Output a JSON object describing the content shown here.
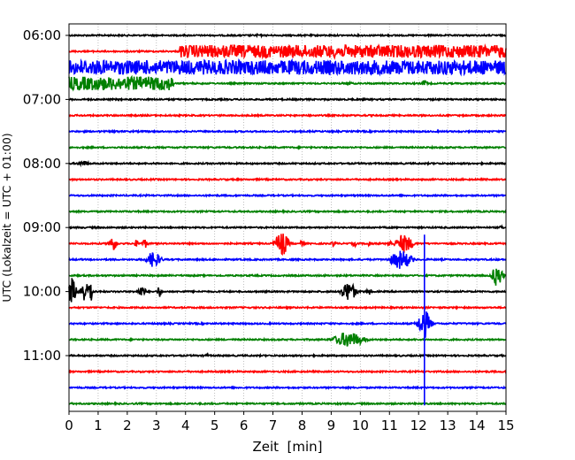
{
  "chart_data": {
    "type": "line",
    "title": "",
    "xlabel": "Zeit  [min]",
    "ylabel": "UTC (Lokalzeit = UTC + 01:00)",
    "xlim": [
      0,
      15
    ],
    "x_ticks": [
      "0",
      "1",
      "2",
      "3",
      "4",
      "5",
      "6",
      "7",
      "8",
      "9",
      "10",
      "11",
      "12",
      "13",
      "14",
      "15"
    ],
    "y_ticks": [
      "06:00",
      "07:00",
      "08:00",
      "09:00",
      "10:00",
      "11:00"
    ],
    "grid": "vertical dotted",
    "row_minutes": 15,
    "rows": [
      {
        "start": "06:00",
        "color": "#000000",
        "events": [
          {
            "t": 6.5,
            "amp": 0.15,
            "dur": 0.6
          }
        ]
      },
      {
        "start": "06:15",
        "color": "#ff0000",
        "events": [],
        "band": {
          "from": 3.8,
          "amp": 0.8
        }
      },
      {
        "start": "06:30",
        "color": "#0000ff",
        "events": [],
        "band": {
          "from": 0,
          "amp": 0.9
        }
      },
      {
        "start": "06:45",
        "color": "#008000",
        "events": [
          {
            "t": 9.6,
            "amp": 0.3,
            "dur": 0.3
          },
          {
            "t": 12.2,
            "amp": 0.4,
            "dur": 0.3
          }
        ],
        "band": {
          "from": 0,
          "to": 3.6,
          "amp": 0.85
        }
      },
      {
        "start": "07:00",
        "color": "#000000",
        "events": []
      },
      {
        "start": "07:15",
        "color": "#ff0000",
        "events": []
      },
      {
        "start": "07:30",
        "color": "#0000ff",
        "events": [
          {
            "t": 1.6,
            "amp": 0.15,
            "dur": 0.5
          }
        ]
      },
      {
        "start": "07:45",
        "color": "#008000",
        "events": []
      },
      {
        "start": "08:00",
        "color": "#000000",
        "events": [
          {
            "t": 0.5,
            "amp": 0.35,
            "dur": 0.6
          },
          {
            "t": 3.0,
            "amp": 0.15,
            "dur": 0.3
          }
        ]
      },
      {
        "start": "08:15",
        "color": "#ff0000",
        "events": []
      },
      {
        "start": "08:30",
        "color": "#0000ff",
        "events": []
      },
      {
        "start": "08:45",
        "color": "#008000",
        "events": []
      },
      {
        "start": "09:00",
        "color": "#000000",
        "events": [
          {
            "t": 14.85,
            "amp": 0.3,
            "dur": 0.2
          }
        ]
      },
      {
        "start": "09:15",
        "color": "#ff0000",
        "events": [
          {
            "t": 1.5,
            "amp": 0.9,
            "dur": 0.4
          },
          {
            "t": 2.3,
            "amp": 0.5,
            "dur": 0.2
          },
          {
            "t": 2.6,
            "amp": 0.6,
            "dur": 0.3
          },
          {
            "t": 7.3,
            "amp": 1.6,
            "dur": 0.6
          },
          {
            "t": 8.0,
            "amp": 0.4,
            "dur": 0.2
          },
          {
            "t": 9.1,
            "amp": 0.5,
            "dur": 0.2
          },
          {
            "t": 9.8,
            "amp": 0.4,
            "dur": 0.2
          },
          {
            "t": 10.3,
            "amp": 0.4,
            "dur": 0.2
          },
          {
            "t": 11.0,
            "amp": 0.6,
            "dur": 0.2
          },
          {
            "t": 11.5,
            "amp": 1.2,
            "dur": 0.8
          }
        ]
      },
      {
        "start": "09:30",
        "color": "#0000ff",
        "events": [
          {
            "t": 2.9,
            "amp": 1.0,
            "dur": 0.7
          },
          {
            "t": 11.4,
            "amp": 1.2,
            "dur": 1.0
          }
        ]
      },
      {
        "start": "09:45",
        "color": "#008000",
        "events": [
          {
            "t": 14.7,
            "amp": 1.4,
            "dur": 0.5
          }
        ]
      },
      {
        "start": "10:00",
        "color": "#000000",
        "events": [
          {
            "t": 0.1,
            "amp": 1.8,
            "dur": 0.4
          },
          {
            "t": 0.5,
            "amp": 1.4,
            "dur": 0.3
          },
          {
            "t": 0.7,
            "amp": 1.8,
            "dur": 0.3
          },
          {
            "t": 2.5,
            "amp": 0.7,
            "dur": 0.4
          },
          {
            "t": 3.1,
            "amp": 0.8,
            "dur": 0.2
          },
          {
            "t": 9.6,
            "amp": 1.3,
            "dur": 0.7
          },
          {
            "t": 10.3,
            "amp": 0.4,
            "dur": 0.3
          }
        ]
      },
      {
        "start": "10:15",
        "color": "#ff0000",
        "events": []
      },
      {
        "start": "10:30",
        "color": "#0000ff",
        "events": [
          {
            "t": 12.2,
            "amp": 1.8,
            "dur": 0.6
          }
        ]
      },
      {
        "start": "10:45",
        "color": "#008000",
        "events": [
          {
            "t": 9.6,
            "amp": 1.0,
            "dur": 1.4
          }
        ]
      },
      {
        "start": "11:00",
        "color": "#000000",
        "events": [
          {
            "t": 4.7,
            "amp": 0.2,
            "dur": 0.4
          }
        ]
      },
      {
        "start": "11:15",
        "color": "#ff0000",
        "events": []
      },
      {
        "start": "11:30",
        "color": "#0000ff",
        "events": []
      },
      {
        "start": "11:45",
        "color": "#008000",
        "events": []
      }
    ],
    "spike": {
      "color": "#0000ff",
      "t": 12.2,
      "from": "09:15",
      "to": "11:45"
    }
  }
}
